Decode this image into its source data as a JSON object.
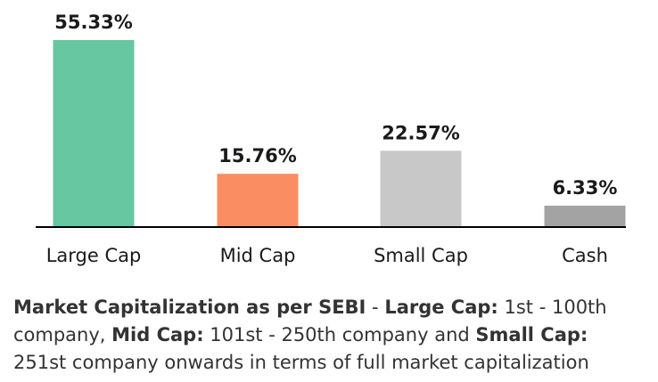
{
  "chart_data": {
    "type": "bar",
    "categories": [
      "Large Cap",
      "Mid Cap",
      "Small Cap",
      "Cash"
    ],
    "values": [
      55.33,
      15.76,
      22.57,
      6.33
    ],
    "value_labels": [
      "55.33%",
      "15.76%",
      "22.57%",
      "6.33%"
    ],
    "colors": [
      "#66c7a1",
      "#fb8d62",
      "#c8c8c8",
      "#a3a3a3"
    ],
    "title": "",
    "xlabel": "",
    "ylabel": "",
    "ylim": [
      0,
      55.33
    ],
    "grid": false,
    "legend": "none"
  },
  "note": {
    "lead_bold": "Market Capitalization as per SEBI",
    "sep1": " - ",
    "large_label": "Large Cap:",
    "large_text": " 1st - 100th company, ",
    "mid_label": "Mid Cap:",
    "mid_text": " 101st - 250th company and ",
    "small_label": "Small Cap:",
    "small_text": " 251st company onwards in terms of full market capitalization"
  }
}
